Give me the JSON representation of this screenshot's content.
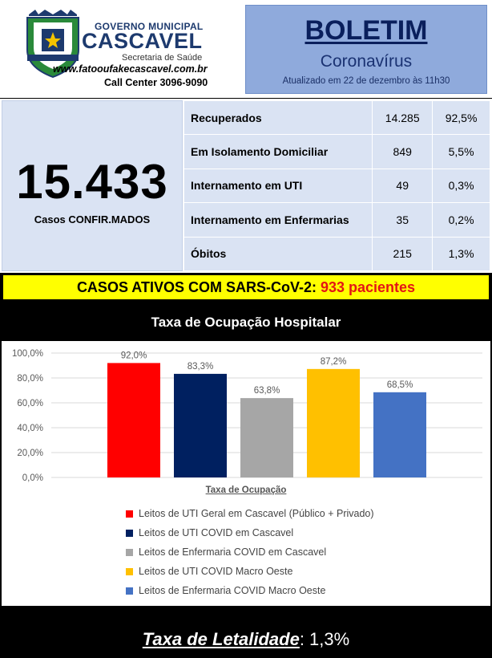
{
  "header": {
    "gov_title": "GOVERNO MUNICIPAL",
    "city_name": "CASCAVEL",
    "department": "Secretaria de Saúde",
    "website": "www.fatooufakecascavel.com.br",
    "call_center": "Call Center 3096-9090"
  },
  "bulletin": {
    "title": "BOLETIM",
    "subtitle": "Coronavírus",
    "updated": "Atualizado em 22 de dezembro  às 11h30"
  },
  "confirmed": {
    "number": "15.433",
    "label": "Casos CONFIR.MADOS"
  },
  "stats_rows": [
    {
      "label": "Recuperados",
      "value": "14.285",
      "percent": "92,5%"
    },
    {
      "label": "Em Isolamento Domiciliar",
      "value": "849",
      "percent": "5,5%"
    },
    {
      "label": "Internamento em UTI",
      "value": "49",
      "percent": "0,3%"
    },
    {
      "label": "Internamento em Enfermarias",
      "value": "35",
      "percent": "0,2%"
    },
    {
      "label": "Óbitos",
      "value": "215",
      "percent": "1,3%"
    }
  ],
  "active_cases": {
    "label": "CASOS ATIVOS COM SARS-CoV-2: ",
    "highlight": "933 pacientes"
  },
  "chart_section_title": "Taxa de Ocupação Hospitalar",
  "chart_data": {
    "type": "bar",
    "title": "",
    "xlabel": "Taxa de Ocupação",
    "ylabel": "",
    "ylim": [
      0,
      100
    ],
    "y_ticks": [
      "0,0%",
      "20,0%",
      "40,0%",
      "60,0%",
      "80,0%",
      "100,0%"
    ],
    "grid": true,
    "legend_placement": "bottom",
    "categories": [
      "Leitos de UTI Geral em Cascavel (Público + Privado)",
      "Leitos de UTI COVID em Cascavel",
      "Leitos de Enfermaria COVID em Cascavel",
      "Leitos de UTI COVID Macro Oeste",
      "Leitos de Enfermaria COVID Macro Oeste"
    ],
    "values": [
      92.0,
      83.3,
      63.8,
      87.2,
      68.5
    ],
    "data_labels": [
      "92,0%",
      "83,3%",
      "63,8%",
      "87,2%",
      "68,5%"
    ],
    "colors": [
      "#ff0000",
      "#002060",
      "#a6a6a6",
      "#ffc000",
      "#4472c4"
    ]
  },
  "footer": {
    "lethality_label": "Taxa de Letalidade",
    "lethality_value": ": 1,3%"
  }
}
